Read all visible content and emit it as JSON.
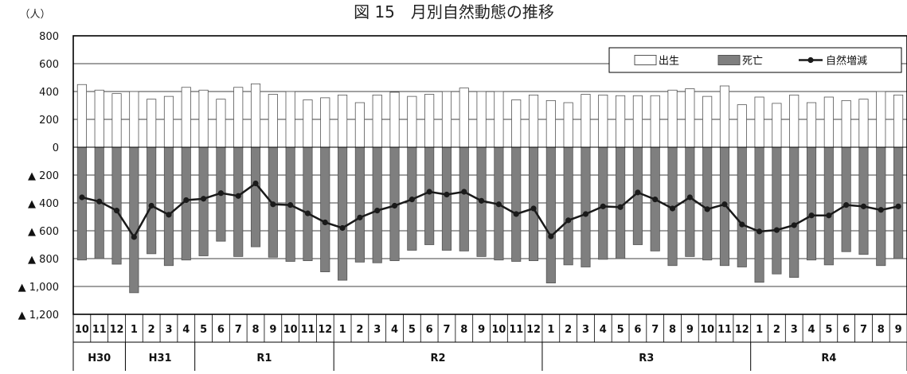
{
  "chart_data": {
    "type": "bar",
    "title": "図 15　月別自然動態の推移",
    "unit_label": "（人）",
    "ylim": [
      -1200,
      800
    ],
    "y_ticks": [
      800,
      600,
      400,
      200,
      0,
      -200,
      -400,
      -600,
      -800,
      -1000,
      -1200
    ],
    "y_tick_labels": [
      "800",
      "600",
      "400",
      "200",
      "0",
      "▲ 200",
      "▲ 400",
      "▲ 600",
      "▲ 800",
      "▲ 1,000",
      "▲ 1,200"
    ],
    "grid": true,
    "legend": {
      "position": "top-right",
      "entries": [
        "出生",
        "死亡",
        "自然増減"
      ]
    },
    "categories": [
      "10",
      "11",
      "12",
      "1",
      "2",
      "3",
      "4",
      "5",
      "6",
      "7",
      "8",
      "9",
      "10",
      "11",
      "12",
      "1",
      "2",
      "3",
      "4",
      "5",
      "6",
      "7",
      "8",
      "9",
      "10",
      "11",
      "12",
      "1",
      "2",
      "3",
      "4",
      "5",
      "6",
      "7",
      "8",
      "9",
      "10",
      "11",
      "12",
      "1",
      "2",
      "3",
      "4",
      "5",
      "6",
      "7",
      "8",
      "9"
    ],
    "year_groups": [
      {
        "label": "H30",
        "count": 3
      },
      {
        "label": "H31",
        "count": 4
      },
      {
        "label": "R1",
        "count": 8
      },
      {
        "label": "R2",
        "count": 12
      },
      {
        "label": "R3",
        "count": 12
      },
      {
        "label": "R4",
        "count": 9
      }
    ],
    "series": [
      {
        "name": "出生",
        "kind": "bar",
        "color": "#ffffff",
        "values": [
          450,
          410,
          385,
          400,
          345,
          365,
          430,
          410,
          345,
          430,
          455,
          380,
          400,
          340,
          355,
          375,
          320,
          375,
          395,
          365,
          380,
          400,
          425,
          400,
          400,
          340,
          375,
          335,
          320,
          380,
          375,
          370,
          370,
          370,
          410,
          420,
          365,
          440,
          305,
          360,
          315,
          375,
          320,
          360,
          335,
          345,
          400,
          375
        ]
      },
      {
        "name": "死亡",
        "kind": "bar",
        "color": "#7f7f7f",
        "values": [
          -810,
          -800,
          -840,
          -1045,
          -765,
          -850,
          -810,
          -780,
          -675,
          -785,
          -715,
          -790,
          -820,
          -815,
          -895,
          -955,
          -825,
          -830,
          -815,
          -740,
          -700,
          -740,
          -745,
          -785,
          -810,
          -820,
          -815,
          -975,
          -845,
          -860,
          -805,
          -800,
          -700,
          -745,
          -850,
          -785,
          -810,
          -850,
          -860,
          -970,
          -910,
          -935,
          -810,
          -845,
          -750,
          -770,
          -850,
          -800
        ]
      },
      {
        "name": "自然増減",
        "kind": "line",
        "color": "#1a1a1a",
        "values": [
          -360,
          -390,
          -455,
          -645,
          -420,
          -485,
          -380,
          -370,
          -330,
          -350,
          -260,
          -410,
          -415,
          -475,
          -540,
          -580,
          -505,
          -455,
          -420,
          -375,
          -320,
          -340,
          -320,
          -385,
          -410,
          -480,
          -440,
          -640,
          -525,
          -480,
          -425,
          -430,
          -325,
          -375,
          -440,
          -360,
          -445,
          -410,
          -555,
          -605,
          -595,
          -560,
          -490,
          -490,
          -415,
          -425,
          -450,
          -425
        ]
      }
    ]
  }
}
